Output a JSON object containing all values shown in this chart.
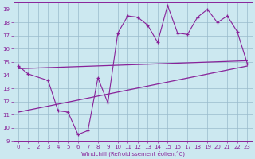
{
  "xlabel": "Windchill (Refroidissement éolien,°C)",
  "background_color": "#cce8f0",
  "grid_color": "#99bbcc",
  "line_color": "#882299",
  "xlim": [
    -0.5,
    23.5
  ],
  "ylim": [
    9,
    19.5
  ],
  "yticks": [
    9,
    10,
    11,
    12,
    13,
    14,
    15,
    16,
    17,
    18,
    19
  ],
  "xticks": [
    0,
    1,
    2,
    3,
    4,
    5,
    6,
    7,
    8,
    9,
    10,
    11,
    12,
    13,
    14,
    15,
    16,
    17,
    18,
    19,
    20,
    21,
    22,
    23
  ],
  "series_x": [
    0,
    1,
    3,
    4,
    5,
    6,
    7,
    8,
    9,
    10,
    11,
    12,
    13,
    14,
    15,
    16,
    17,
    18,
    19,
    20,
    21,
    22,
    23
  ],
  "series_y": [
    14.7,
    14.1,
    13.6,
    11.3,
    11.2,
    9.5,
    9.8,
    13.8,
    11.9,
    17.2,
    18.5,
    18.4,
    17.8,
    16.5,
    19.3,
    17.2,
    17.1,
    18.4,
    19.0,
    18.0,
    18.5,
    17.3,
    14.9
  ],
  "trend1_x": [
    0,
    23
  ],
  "trend1_y": [
    14.5,
    15.1
  ],
  "trend2_x": [
    0,
    23
  ],
  "trend2_y": [
    11.2,
    14.7
  ]
}
